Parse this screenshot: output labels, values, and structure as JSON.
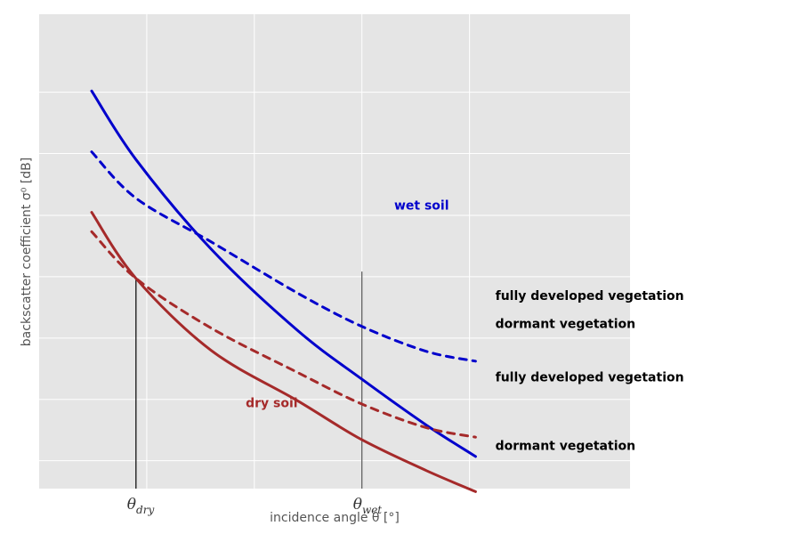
{
  "chart_data": {
    "type": "line",
    "xlabel": "incidence angle θ [°]",
    "ylabel": "backscatter coefficient σ⁰ [dB]",
    "xlim": [
      0,
      100
    ],
    "ylim": [
      0,
      100
    ],
    "grid": true,
    "x_ticks": [
      0,
      25,
      50,
      75,
      100
    ],
    "y_ticks": [
      6.5,
      20.8,
      35.1,
      49.4,
      63.7,
      78.1,
      92.4
    ],
    "reference_lines": [
      {
        "label": "θ",
        "subscript": "dry",
        "x": 22.5,
        "y": 49.0,
        "color": "#000000"
      },
      {
        "label": "θ",
        "subscript": "wet",
        "x": 75,
        "y": 50.6,
        "color": "#555555"
      }
    ],
    "series": [
      {
        "name": "wet soil – dormant vegetation",
        "color": "#0000cc",
        "dash": false,
        "points": [
          [
            12.2,
            92.7
          ],
          [
            22.5,
            76.7
          ],
          [
            40,
            55.8
          ],
          [
            60,
            36.9
          ],
          [
            75,
            25.5
          ],
          [
            90,
            14.8
          ],
          [
            101.4,
            7.5
          ]
        ]
      },
      {
        "name": "wet soil – fully developed vegetation",
        "color": "#0000cc",
        "dash": true,
        "points": [
          [
            12.2,
            78.5
          ],
          [
            22.5,
            67.7
          ],
          [
            40,
            57.5
          ],
          [
            60,
            45.6
          ],
          [
            75,
            37.8
          ],
          [
            90,
            32.0
          ],
          [
            101.4,
            29.7
          ]
        ]
      },
      {
        "name": "dry soil – fully developed vegetation",
        "color": "#a52a2a",
        "dash": true,
        "points": [
          [
            12.2,
            59.9
          ],
          [
            22.5,
            49.0
          ],
          [
            40,
            37.4
          ],
          [
            60,
            27.1
          ],
          [
            75,
            19.7
          ],
          [
            90,
            14.2
          ],
          [
            101.4,
            12.0
          ]
        ]
      },
      {
        "name": "dry soil – dormant vegetation",
        "color": "#a52a2a",
        "dash": false,
        "points": [
          [
            12.2,
            64.4
          ],
          [
            22.5,
            49.0
          ],
          [
            40,
            32.2
          ],
          [
            60,
            20.5
          ],
          [
            75,
            11.4
          ],
          [
            90,
            4.2
          ],
          [
            101.4,
            -0.7
          ]
        ]
      }
    ],
    "annotations": [
      {
        "text": "wet soil",
        "x": 82.5,
        "y": 65.0,
        "color": "#0000cc"
      },
      {
        "text": "dry soil",
        "x": 48.0,
        "y": 19.0,
        "color": "#a52a2a"
      },
      {
        "text": "fully developed vegetation",
        "x": 106,
        "y": 44.0,
        "color": "#000000"
      },
      {
        "text": "dormant vegetation",
        "x": 106,
        "y": 37.5,
        "color": "#000000"
      },
      {
        "text": "fully developed vegetation",
        "x": 106,
        "y": 25.0,
        "color": "#000000"
      },
      {
        "text": "dormant vegetation",
        "x": 106,
        "y": 9.0,
        "color": "#000000"
      }
    ]
  }
}
